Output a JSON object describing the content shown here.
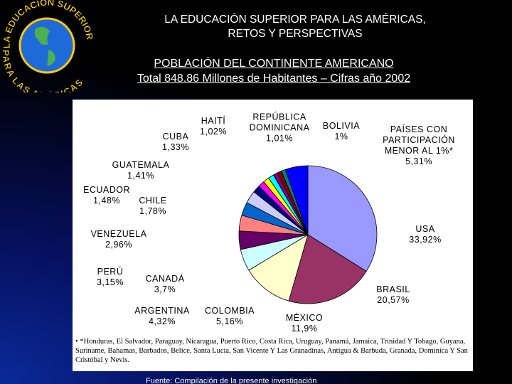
{
  "header": {
    "logo_top": "LA EDUCACIÓN SUPERIOR",
    "logo_bottom": "PARA LAS AMÉRICAS",
    "title_line1": "LA EDUCACIÓN SUPERIOR PARA LAS AMÉRICAS,",
    "title_line2": "RETOS Y PERSPECTIVAS",
    "subtitle_line1": "POBLACIÓN DEL CONTINENTE AMERICANO",
    "subtitle_line2": "Total 848.86 Millones de Habitantes – Cifras año 2002"
  },
  "chart_data": {
    "type": "pie",
    "categories": [
      "USA",
      "BRASIL",
      "MÉXICO",
      "COLOMBIA",
      "ARGENTINA",
      "CANADÁ",
      "PERÚ",
      "VENEZUELA",
      "CHILE",
      "ECUADOR",
      "GUATEMALA",
      "CUBA",
      "HAITÍ",
      "REPÚBLICA DOMINICANA",
      "BOLIVIA",
      "PAÍSES CON PARTICIPACIÓN MENOR AL 1%*"
    ],
    "values": [
      33.92,
      20.57,
      11.9,
      5.16,
      4.32,
      3.7,
      3.15,
      2.96,
      1.78,
      1.48,
      1.41,
      1.33,
      1.02,
      1.01,
      1,
      5.31
    ],
    "value_labels": [
      "33,92%",
      "20,57%",
      "11,9%",
      "5,16%",
      "4,32%",
      "3,7%",
      "3,15%",
      "2,96%",
      "1,78%",
      "1,48%",
      "1,41%",
      "1,33%",
      "1,02%",
      "1,01%",
      "1%",
      "5,31%"
    ],
    "colors": [
      "#9999ff",
      "#993366",
      "#ffffcc",
      "#ccffff",
      "#660066",
      "#ff8080",
      "#0066cc",
      "#ccccff",
      "#000080",
      "#ff00ff",
      "#ffff00",
      "#00ffff",
      "#800080",
      "#800000",
      "#008080",
      "#0000ff"
    ],
    "footnote": "*Honduras, El Salvador, Paraguay, Nicaragua, Puerto Rico, Costa Rica, Uruguay, Panamá, Jamaica, Trinidad Y Tobago, Guyana, Suriname, Bahamas, Barbados, Belice, Santa Lucía, San Vicente Y Las Granadinas, Antigua & Barbuda, Granada, Dominica Y San Cristóbal y Nevis."
  },
  "footer": {
    "source": "Fuente: Compilación de la presente investigación"
  }
}
